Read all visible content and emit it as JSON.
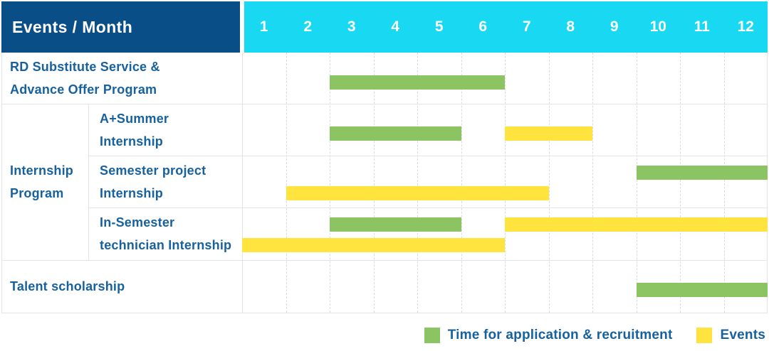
{
  "table": {
    "corner_label": "Events / Month",
    "months": [
      "1",
      "2",
      "3",
      "4",
      "5",
      "6",
      "7",
      "8",
      "9",
      "10",
      "11",
      "12"
    ],
    "group_label_lines": [
      "Internship",
      "Program"
    ],
    "rows": [
      {
        "id": "rd-substitute-advance-offer",
        "label_lines": [
          "RD Substitute Service &",
          "Advance Offer Program"
        ],
        "in_group": false,
        "bars": [
          {
            "color": "green",
            "start": 3,
            "end": 6,
            "lane": "single"
          }
        ]
      },
      {
        "id": "a-plus-summer-internship",
        "label_lines": [
          "A+Summer",
          "Internship"
        ],
        "in_group": true,
        "bars": [
          {
            "color": "green",
            "start": 3,
            "end": 5,
            "lane": "single"
          },
          {
            "color": "yellow",
            "start": 7,
            "end": 8,
            "lane": "single"
          }
        ]
      },
      {
        "id": "semester-project-internship",
        "label_lines": [
          "Semester project",
          "Internship"
        ],
        "in_group": true,
        "bars": [
          {
            "color": "green",
            "start": 10,
            "end": 12,
            "lane": "top"
          },
          {
            "color": "yellow",
            "start": 2,
            "end": 7,
            "lane": "bottom"
          }
        ]
      },
      {
        "id": "in-semester-technician-internship",
        "label_lines": [
          "In-Semester",
          "technician Internship"
        ],
        "in_group": true,
        "bars": [
          {
            "color": "green",
            "start": 3,
            "end": 5,
            "lane": "top"
          },
          {
            "color": "yellow",
            "start": 7,
            "end": 12,
            "lane": "top"
          },
          {
            "color": "yellow",
            "start": 1,
            "end": 6,
            "lane": "bottom"
          }
        ]
      },
      {
        "id": "talent-scholarship",
        "label_lines": [
          "Talent scholarship"
        ],
        "in_group": false,
        "bars": [
          {
            "color": "green",
            "start": 10,
            "end": 12,
            "lane": "single"
          }
        ]
      }
    ]
  },
  "legend": [
    {
      "color": "green",
      "label": "Time for application & recruitment"
    },
    {
      "color": "yellow",
      "label": "Events"
    }
  ],
  "colors": {
    "header_bg": "#0a4e87",
    "months_bg": "#18d9f1",
    "label_text": "#17619f",
    "green": "#8cc363",
    "yellow": "#ffe33e",
    "grid_solid": "#e3e4e6",
    "grid_dashed": "#d9dbdd",
    "header_text": "#ffffff"
  },
  "chart_data": {
    "type": "table",
    "subtype": "gantt",
    "title": "Events / Month",
    "x_axis": {
      "label": "Month",
      "ticks": [
        1,
        2,
        3,
        4,
        5,
        6,
        7,
        8,
        9,
        10,
        11,
        12
      ],
      "range": [
        1,
        12
      ]
    },
    "grid": "dashed-vertical-per-month",
    "legend_position": "bottom-right",
    "legend": [
      {
        "label": "Time for application & recruitment",
        "color": "#8cc363"
      },
      {
        "label": "Events",
        "color": "#ffe33e"
      }
    ],
    "rows": [
      {
        "event": "RD Substitute Service & Advance Offer Program",
        "group": null,
        "application_recruitment_months": [
          [
            3,
            6
          ]
        ],
        "events_months": []
      },
      {
        "event": "A+Summer Internship",
        "group": "Internship Program",
        "application_recruitment_months": [
          [
            3,
            5
          ]
        ],
        "events_months": [
          [
            7,
            8
          ]
        ]
      },
      {
        "event": "Semester project Internship",
        "group": "Internship Program",
        "application_recruitment_months": [
          [
            10,
            12
          ]
        ],
        "events_months": [
          [
            2,
            7
          ]
        ]
      },
      {
        "event": "In-Semester technician Internship",
        "group": "Internship Program",
        "application_recruitment_months": [
          [
            3,
            5
          ]
        ],
        "events_months": [
          [
            1,
            6
          ],
          [
            7,
            12
          ]
        ]
      },
      {
        "event": "Talent scholarship",
        "group": null,
        "application_recruitment_months": [
          [
            10,
            12
          ]
        ],
        "events_months": []
      }
    ],
    "notes": "month ranges are inclusive [start_month, end_month]"
  }
}
